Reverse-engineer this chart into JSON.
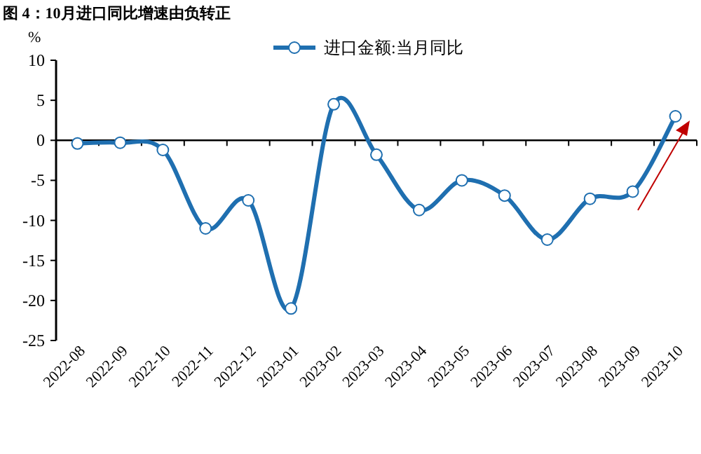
{
  "chart_data": {
    "type": "line",
    "title": "图 4：10月进口同比增速由负转正",
    "ylabel": "%",
    "categories": [
      "2022-08",
      "2022-09",
      "2022-10",
      "2022-11",
      "2022-12",
      "2023-01",
      "2023-02",
      "2023-03",
      "2023-04",
      "2023-05",
      "2023-06",
      "2023-07",
      "2023-08",
      "2023-09",
      "2023-10"
    ],
    "series": [
      {
        "name": "进口金额:当月同比",
        "color": "#1f6fb0",
        "values": [
          -0.4,
          -0.3,
          -1.2,
          -11,
          -7.5,
          -21,
          4.5,
          -1.8,
          -8.7,
          -5.0,
          -6.9,
          -12.4,
          -7.3,
          -6.4,
          3.0
        ]
      }
    ],
    "ylim": [
      -25,
      10
    ],
    "yticks": [
      -25,
      -20,
      -15,
      -10,
      -5,
      0,
      5,
      10
    ],
    "legend": "top",
    "marker": "circle"
  }
}
